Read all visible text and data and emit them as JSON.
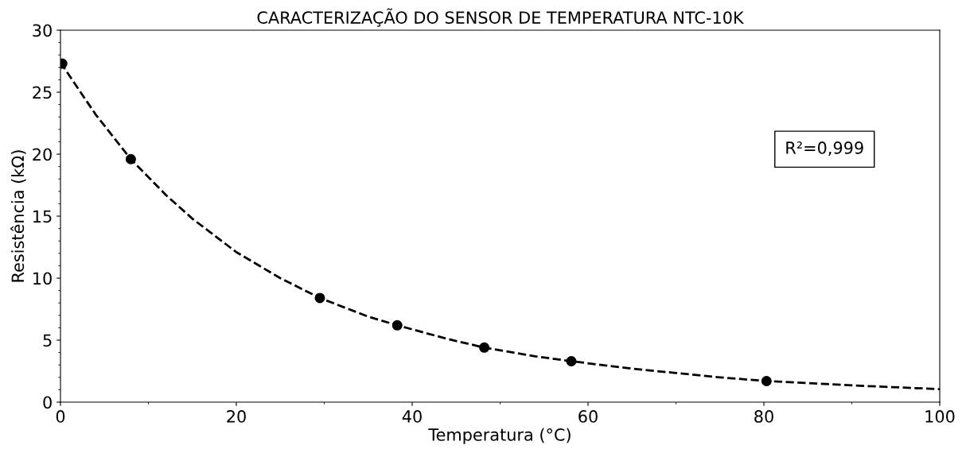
{
  "chart_data": {
    "type": "scatter",
    "title": "CARACTERIZAÇÃO DO SENSOR DE TEMPERATURA NTC-10K",
    "xlabel": "Temperatura (°C)",
    "ylabel": "Resistência (kΩ)",
    "series": [
      {
        "color": "#000000",
        "marker": "circle",
        "x": [
          0.2,
          8.0,
          29.5,
          38.3,
          48.2,
          58.1,
          80.3
        ],
        "values": [
          27.3,
          19.6,
          8.4,
          6.2,
          4.4,
          3.3,
          1.7
        ]
      },
      {
        "type": "line",
        "color": "#000000",
        "line_style": "dashed",
        "marker": "none",
        "x": [
          0,
          4,
          8,
          12,
          15,
          20,
          25,
          29.5,
          35,
          38.3,
          44,
          48.2,
          54,
          58.1,
          65,
          70,
          75,
          80.3,
          90,
          100
        ],
        "values": [
          27.4,
          23.2,
          19.6,
          16.7,
          14.8,
          12.1,
          10.0,
          8.4,
          6.9,
          6.2,
          5.1,
          4.4,
          3.7,
          3.3,
          2.7,
          2.35,
          2.0,
          1.7,
          1.35,
          1.05
        ]
      }
    ],
    "annotations": [
      "R²=0,999"
    ],
    "xlim": [
      0,
      100
    ],
    "ylim": [
      0,
      30
    ],
    "xticks": [
      0,
      20,
      40,
      60,
      80,
      100
    ],
    "yticks": [
      0,
      5,
      10,
      15,
      20,
      25,
      30
    ],
    "grid": false
  }
}
